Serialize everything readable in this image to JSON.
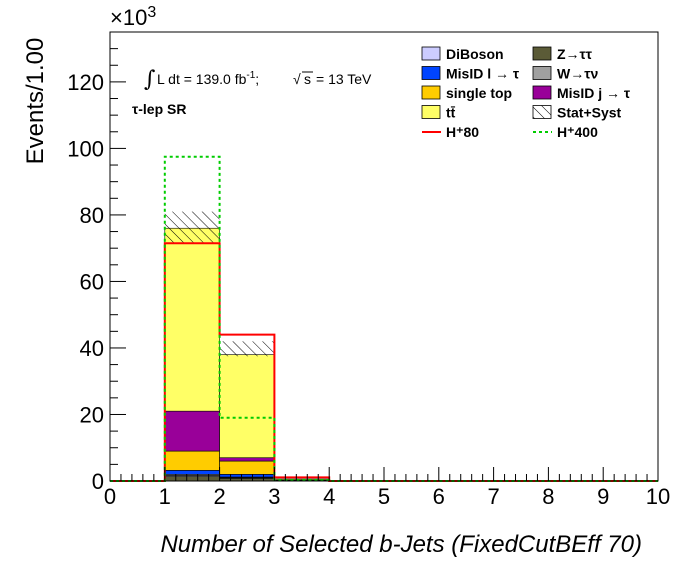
{
  "chart_data": {
    "type": "bar",
    "stacked": true,
    "xlabel": "Number of Selected b-Jets (FixedCutBEff 70)",
    "ylabel": "Events/1.00",
    "y_multiplier": "×10",
    "y_multiplier_exp": "3",
    "xlim": [
      0,
      10
    ],
    "ylim": [
      0,
      135
    ],
    "x_ticks": [
      "0",
      "1",
      "2",
      "3",
      "4",
      "5",
      "6",
      "7",
      "8",
      "9",
      "10"
    ],
    "y_ticks": [
      "0",
      "20",
      "40",
      "60",
      "80",
      "100",
      "120"
    ],
    "bins": [
      [
        0,
        1
      ],
      [
        1,
        2
      ],
      [
        2,
        3
      ],
      [
        3,
        4
      ],
      [
        4,
        5
      ],
      [
        5,
        6
      ],
      [
        6,
        7
      ],
      [
        7,
        8
      ],
      [
        8,
        9
      ],
      [
        9,
        10
      ]
    ],
    "annotation": {
      "lumi": "L dt = 139.0 fb",
      "lumi_sup": "-1",
      "sqrt_s": "s",
      "energy": "= 13 TeV",
      "region": "τ-lep SR"
    },
    "stack": [
      {
        "name": "Z→ττ",
        "color": "#5b5b37",
        "values": [
          0,
          1.3,
          0.8,
          0.05,
          0,
          0,
          0,
          0,
          0,
          0
        ]
      },
      {
        "name": "W→τν",
        "color": "#a0a0a0",
        "values": [
          0,
          0.4,
          0.2,
          0,
          0,
          0,
          0,
          0,
          0,
          0
        ]
      },
      {
        "name": "DiBoson",
        "color": "#ccccff",
        "values": [
          0,
          0.3,
          0.2,
          0,
          0,
          0,
          0,
          0,
          0,
          0
        ]
      },
      {
        "name": "MisID l → τ",
        "color": "#0044ff",
        "values": [
          0,
          1.2,
          0.8,
          0.05,
          0,
          0,
          0,
          0,
          0,
          0
        ]
      },
      {
        "name": "single top",
        "color": "#ffcc00",
        "values": [
          0,
          5.8,
          4.0,
          0.1,
          0,
          0,
          0,
          0,
          0,
          0
        ]
      },
      {
        "name": "MisID j → τ",
        "color": "#990099",
        "values": [
          0,
          12.0,
          1.0,
          0.1,
          0,
          0,
          0,
          0,
          0,
          0
        ]
      },
      {
        "name": "tt̄",
        "color": "#ffff66",
        "values": [
          0,
          55.0,
          31.0,
          0.3,
          0,
          0,
          0,
          0,
          0,
          0
        ]
      }
    ],
    "uncertainty": {
      "name": "Stat+Syst",
      "up": [
        0,
        81,
        42,
        0.6,
        0,
        0,
        0,
        0,
        0,
        0
      ],
      "down": [
        0,
        71.3,
        37.5,
        0.5,
        0,
        0,
        0,
        0,
        0,
        0
      ]
    },
    "signals": [
      {
        "name": "H⁺80",
        "color": "#ff0000",
        "style": "solid",
        "values": [
          0,
          71.5,
          44.0,
          1.1,
          0,
          0,
          0,
          0,
          0,
          0
        ]
      },
      {
        "name": "H⁺400",
        "color": "#00cc00",
        "style": "dotted",
        "values": [
          0,
          97.5,
          19.0,
          0.3,
          0,
          0,
          0,
          0,
          0,
          0
        ]
      }
    ],
    "legend": [
      {
        "label": "DiBoson",
        "color": "#ccccff",
        "kind": "box"
      },
      {
        "label": "Z→ττ",
        "color": "#5b5b37",
        "kind": "box"
      },
      {
        "label": "MisID l → τ",
        "color": "#0044ff",
        "kind": "box"
      },
      {
        "label": "W→τν",
        "color": "#a0a0a0",
        "kind": "box"
      },
      {
        "label": "single top",
        "color": "#ffcc00",
        "kind": "box"
      },
      {
        "label": "MisID j → τ",
        "color": "#990099",
        "kind": "box"
      },
      {
        "label": "tt̄",
        "color": "#ffff66",
        "kind": "box"
      },
      {
        "label": "Stat+Syst",
        "color": "#000000",
        "kind": "hatch"
      },
      {
        "label": "H⁺80",
        "color": "#ff0000",
        "kind": "line"
      },
      {
        "label": "H⁺400",
        "color": "#00cc00",
        "kind": "dotted"
      }
    ],
    "legend_position": "top-right",
    "grid": false
  }
}
